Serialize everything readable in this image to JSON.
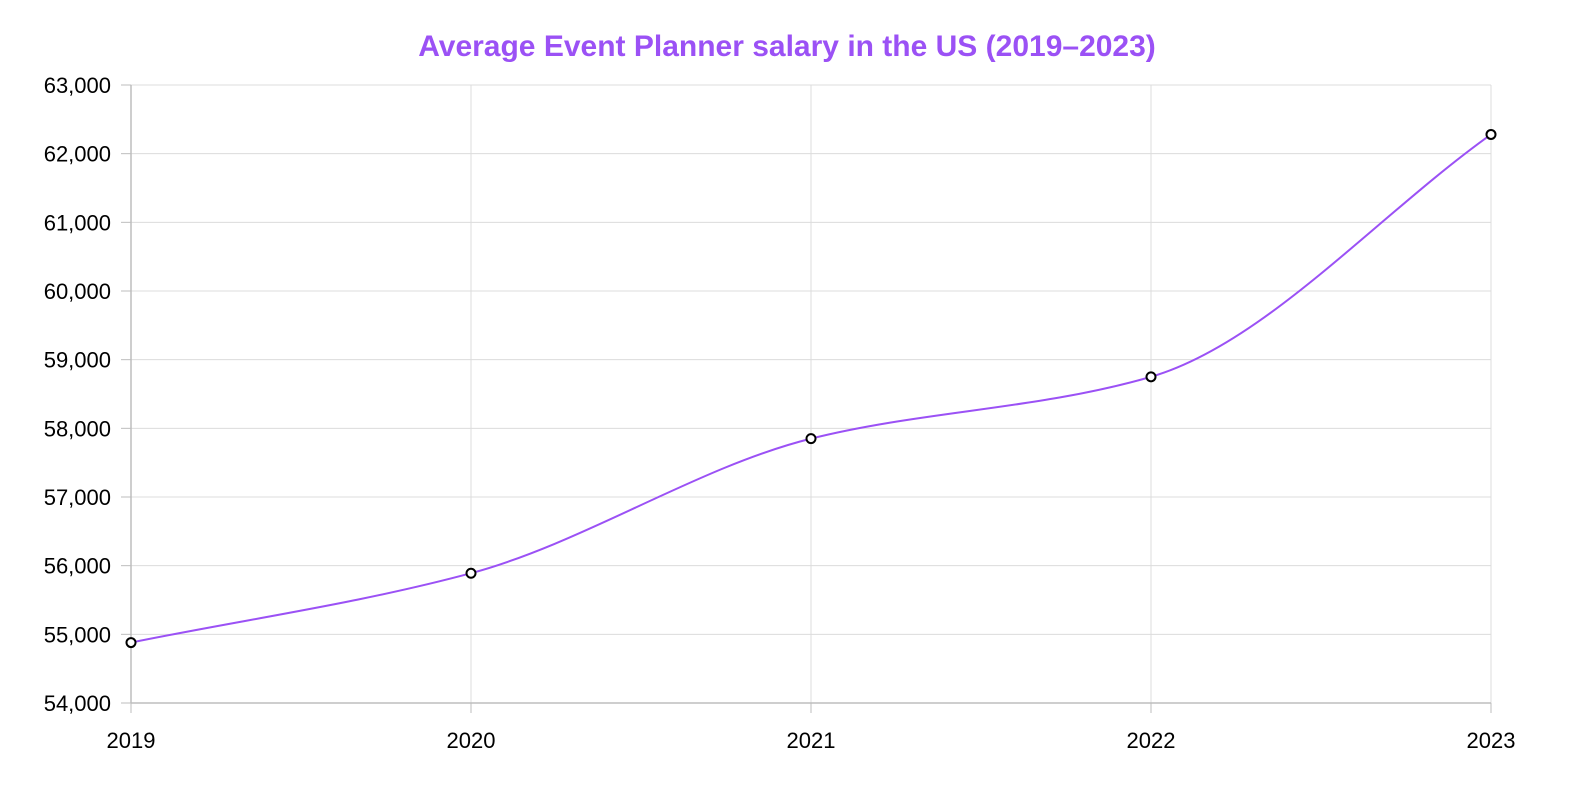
{
  "colors": {
    "title": "#9b51f5",
    "line": "#9b51f5",
    "grid": "#dcdcdc",
    "axis": "#bdbdbd",
    "point_fill": "#ffffff",
    "point_stroke": "#000000"
  },
  "chart_data": {
    "type": "line",
    "title": "Average Event Planner salary in the US (2019–2023)",
    "xlabel": "",
    "ylabel": "",
    "categories": [
      "2019",
      "2020",
      "2021",
      "2022",
      "2023"
    ],
    "series": [
      {
        "values": [
          54880,
          55890,
          57850,
          58750,
          62280
        ]
      }
    ],
    "ylim": [
      54000,
      63000
    ],
    "yticks": [
      54000,
      55000,
      56000,
      57000,
      58000,
      59000,
      60000,
      61000,
      62000,
      63000
    ],
    "ytick_labels": [
      "54,000",
      "55,000",
      "56,000",
      "57,000",
      "58,000",
      "59,000",
      "60,000",
      "61,000",
      "62,000",
      "63,000"
    ],
    "grid": true,
    "legend": "none",
    "curve": "smooth"
  }
}
